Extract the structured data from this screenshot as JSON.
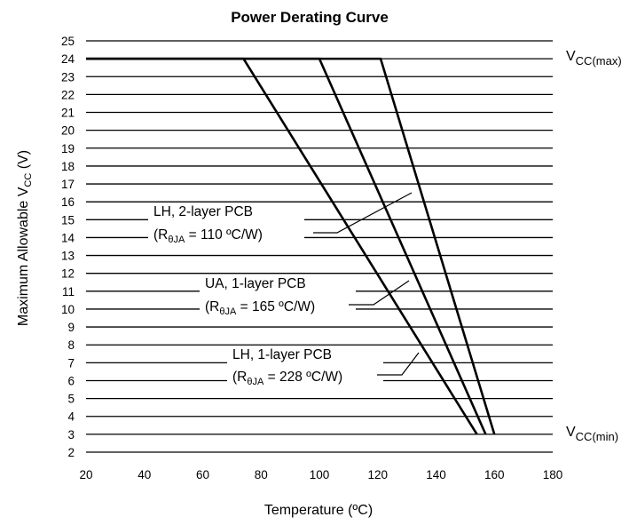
{
  "chart_data": {
    "type": "line",
    "title": "Power Derating Curve",
    "xlabel": "Temperature (ºC)",
    "ylabel": {
      "main": "Maximum Allowable V",
      "sub": "CC",
      "suffix": " (V)"
    },
    "xlim": [
      20,
      180
    ],
    "ylim": [
      2,
      25
    ],
    "xticks": [
      20,
      40,
      60,
      80,
      100,
      120,
      140,
      160,
      180
    ],
    "yticks": [
      2,
      3,
      4,
      5,
      6,
      7,
      8,
      9,
      10,
      11,
      12,
      13,
      14,
      15,
      16,
      17,
      18,
      19,
      20,
      21,
      22,
      23,
      24,
      25
    ],
    "grid": {
      "horizontal": true,
      "vertical": false
    },
    "series": [
      {
        "label": {
          "line1": "LH, 2-layer PCB",
          "line2_pre": "(R",
          "line2_sub": "θJA",
          "line2_post": " = 110 ºC/W)"
        },
        "points": [
          [
            20,
            24
          ],
          [
            121,
            24
          ],
          [
            160,
            3
          ]
        ]
      },
      {
        "label": {
          "line1": "UA, 1-layer PCB",
          "line2_pre": "(R",
          "line2_sub": "θJA",
          "line2_post": " = 165 ºC/W)"
        },
        "points": [
          [
            20,
            24
          ],
          [
            100,
            24
          ],
          [
            157,
            3
          ]
        ]
      },
      {
        "label": {
          "line1": "LH, 1-layer PCB",
          "line2_pre": "(R",
          "line2_sub": "θJA",
          "line2_post": " = 228 ºC/W)"
        },
        "points": [
          [
            20,
            24
          ],
          [
            74,
            24
          ],
          [
            154,
            3
          ]
        ]
      }
    ],
    "reference_labels": [
      {
        "main": "V",
        "sub": "CC(max)",
        "y": 24
      },
      {
        "main": "V",
        "sub": "CC(min)",
        "y": 3
      }
    ]
  }
}
